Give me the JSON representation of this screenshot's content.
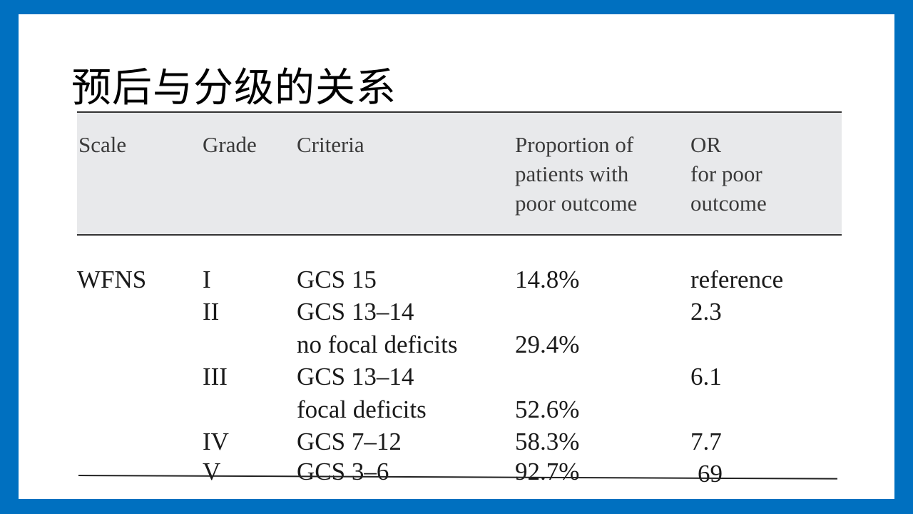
{
  "slide": {
    "title": "预后与分级的关系"
  },
  "table": {
    "headers": {
      "scale": "Scale",
      "grade": "Grade",
      "criteria": "Criteria",
      "proportion": "Proportion of\npatients with\npoor outcome",
      "or": "OR\nfor poor\noutcome"
    },
    "scale_name": "WFNS",
    "rows": [
      {
        "grade": "I",
        "criteria": "GCS 15",
        "proportion": "14.8%",
        "or": "reference"
      },
      {
        "grade": "II",
        "criteria": "GCS 13–14",
        "criteria2": "no focal deficits",
        "proportion": "29.4%",
        "or": "2.3"
      },
      {
        "grade": "III",
        "criteria": "GCS 13–14",
        "criteria2": "focal deficits",
        "proportion": "52.6%",
        "or": "6.1"
      },
      {
        "grade": "IV",
        "criteria": "GCS 7–12",
        "proportion": "58.3%",
        "or": "7.7"
      },
      {
        "grade": "V",
        "criteria": "GCS 3–6",
        "proportion": "92.7%",
        "or": "69"
      }
    ]
  }
}
